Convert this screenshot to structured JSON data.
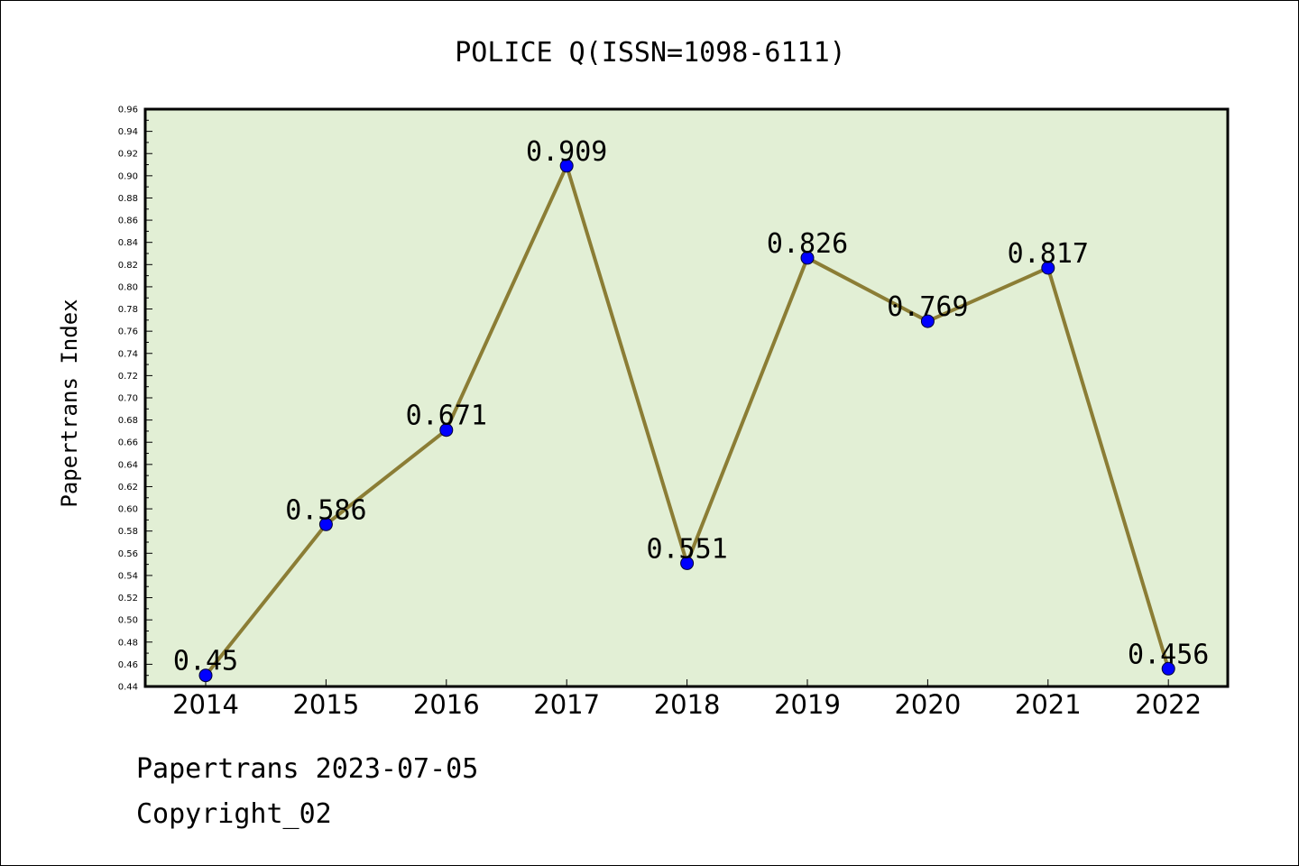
{
  "chart_data": {
    "type": "line",
    "title": "POLICE Q(ISSN=1098-6111)",
    "xlabel": "",
    "ylabel": "Papertrans Index",
    "categories": [
      "2014",
      "2015",
      "2016",
      "2017",
      "2018",
      "2019",
      "2020",
      "2021",
      "2022"
    ],
    "values": [
      0.45,
      0.586,
      0.671,
      0.909,
      0.551,
      0.826,
      0.769,
      0.817,
      0.456
    ],
    "value_labels": [
      "0.45",
      "0.586",
      "0.671",
      "0.909",
      "0.551",
      "0.826",
      "0.769",
      "0.817",
      "0.456"
    ],
    "ylim": [
      0.44,
      0.96
    ],
    "yticks": [
      "0.44",
      "0.46",
      "0.48",
      "0.50",
      "0.52",
      "0.54",
      "0.56",
      "0.58",
      "0.60",
      "0.62",
      "0.64",
      "0.66",
      "0.68",
      "0.70",
      "0.72",
      "0.74",
      "0.76",
      "0.78",
      "0.80",
      "0.82",
      "0.84",
      "0.86",
      "0.88",
      "0.90",
      "0.92",
      "0.94",
      "0.96"
    ],
    "grid": false,
    "legend": "none",
    "colors": {
      "plot_background": "#e2efd5",
      "line": "#8b7d35",
      "marker": "#0000ff"
    }
  },
  "footer": {
    "line1": "Papertrans 2023-07-05",
    "line2": "Copyright_02"
  }
}
